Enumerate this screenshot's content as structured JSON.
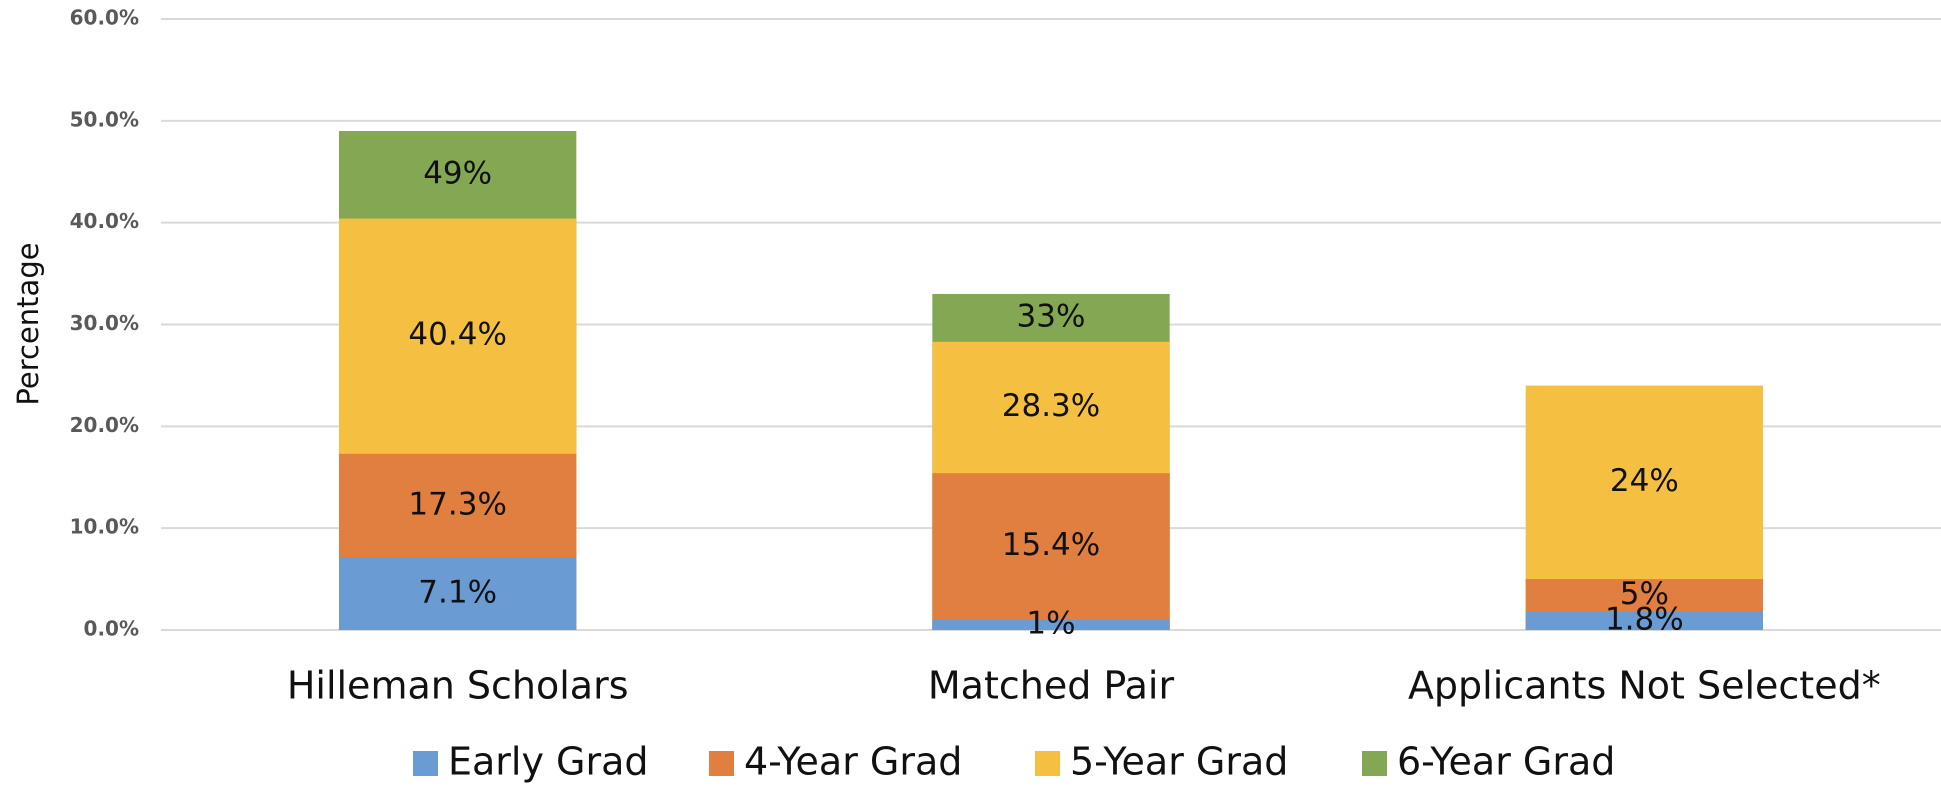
{
  "chart_data": {
    "type": "bar",
    "overlap": true,
    "y_label": "Percentage",
    "categories": [
      "Hilleman Scholars",
      "Matched Pair",
      "Applicants Not Selected*"
    ],
    "series": [
      {
        "name": "Early Grad",
        "color": "#6a9bd3",
        "values": [
          7.1,
          1,
          1.8
        ],
        "value_labels": [
          "7.1%",
          "1%",
          "1.8%"
        ]
      },
      {
        "name": "4-Year Grad",
        "color": "#e07f40",
        "values": [
          17.3,
          15.4,
          5
        ],
        "value_labels": [
          "17.3%",
          "15.4%",
          "5%"
        ]
      },
      {
        "name": "5-Year Grad",
        "color": "#f5c042",
        "values": [
          40.4,
          28.3,
          24
        ],
        "value_labels": [
          "40.4%",
          "28.3%",
          "24%"
        ]
      },
      {
        "name": "6-Year Grad",
        "color": "#83a752",
        "values": [
          49,
          33,
          null
        ],
        "value_labels": [
          "49%",
          "33%",
          null
        ]
      }
    ],
    "ylim": [
      0,
      60
    ],
    "yticks": [
      {
        "value": 0,
        "label": "0.0%"
      },
      {
        "value": 10,
        "label": "10.0%"
      },
      {
        "value": 20,
        "label": "20.0%"
      },
      {
        "value": 30,
        "label": "30.0%"
      },
      {
        "value": 40,
        "label": "40.0%"
      },
      {
        "value": 50,
        "label": "50.0%"
      },
      {
        "value": 60,
        "label": "60.0%"
      }
    ],
    "grid": true,
    "legend": "bottom"
  }
}
